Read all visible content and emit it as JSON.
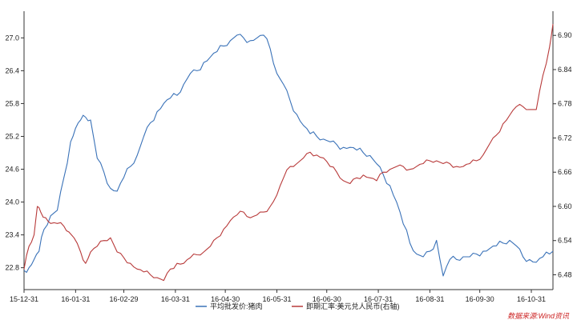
{
  "chart_data": {
    "type": "line",
    "x_ticks": [
      "15-12-31",
      "16-01-31",
      "16-02-29",
      "16-03-31",
      "16-04-30",
      "16-05-31",
      "16-06-30",
      "16-07-31",
      "16-08-31",
      "16-09-30",
      "16-10-31"
    ],
    "y_left": {
      "ticks": [
        "22.8",
        "23.4",
        "24.0",
        "24.6",
        "25.2",
        "25.8",
        "26.4",
        "27.0"
      ],
      "ylim": [
        22.4,
        27.4
      ]
    },
    "y_right": {
      "ticks": [
        "6.48",
        "6.54",
        "6.60",
        "6.66",
        "6.72",
        "6.78",
        "6.84",
        "6.90"
      ],
      "ylim": [
        6.454,
        6.934
      ]
    },
    "series": [
      {
        "name": "平均批发价:猪肉",
        "axis": "left",
        "color": "#3a72b8",
        "x": [
          0,
          3,
          6,
          9,
          12,
          16,
          20,
          24,
          28,
          31,
          34,
          37,
          40,
          44,
          48,
          52,
          56,
          60,
          64,
          68,
          72,
          76,
          80,
          84,
          88,
          92,
          96,
          100,
          104,
          108,
          112,
          116,
          120,
          124,
          128,
          132,
          136,
          140,
          144,
          148,
          152,
          156,
          160,
          164,
          168,
          172,
          176,
          180,
          184,
          188,
          192,
          196,
          200,
          204,
          208,
          212,
          216,
          220,
          224,
          228,
          232,
          236,
          240,
          244,
          248,
          252,
          256,
          260,
          264,
          268,
          272,
          276,
          280,
          284,
          288,
          292,
          296,
          300,
          304,
          308,
          312,
          316
        ],
        "y": [
          22.75,
          22.8,
          22.95,
          23.1,
          23.5,
          23.75,
          23.85,
          24.45,
          25.1,
          25.35,
          25.5,
          25.55,
          25.5,
          24.8,
          24.55,
          24.25,
          24.2,
          24.45,
          24.65,
          24.85,
          25.2,
          25.45,
          25.65,
          25.8,
          25.9,
          25.95,
          26.15,
          26.35,
          26.4,
          26.55,
          26.65,
          26.75,
          26.85,
          26.95,
          27.05,
          27.0,
          26.95,
          27.0,
          27.05,
          26.8,
          26.35,
          26.15,
          25.85,
          25.6,
          25.4,
          25.25,
          25.2,
          25.15,
          25.1,
          25.05,
          25.0,
          25.0,
          24.95,
          24.9,
          24.85,
          24.7,
          24.5,
          24.3,
          24.0,
          23.6,
          23.25,
          23.05,
          23.0,
          23.1,
          23.3,
          22.65,
          22.95,
          22.95,
          23.0,
          23.0,
          23.05,
          23.1,
          23.15,
          23.2,
          23.25,
          23.3,
          23.2,
          23.0,
          22.95,
          22.9,
          23.0,
          23.05
        ],
        "x_end": 318,
        "y_end": 23.1
      },
      {
        "name": "即期汇率:美元兑人民币(右轴)",
        "axis": "right",
        "color": "#b83a3a",
        "x": [
          0,
          3,
          6,
          8,
          10,
          13,
          16,
          20,
          24,
          27,
          30,
          34,
          37,
          40,
          44,
          48,
          52,
          56,
          60,
          64,
          68,
          72,
          76,
          80,
          84,
          88,
          92,
          96,
          100,
          104,
          108,
          112,
          116,
          120,
          124,
          128,
          132,
          136,
          140,
          144,
          148,
          152,
          156,
          160,
          164,
          168,
          172,
          176,
          180,
          184,
          188,
          192,
          196,
          200,
          204,
          208,
          212,
          216,
          220,
          224,
          228,
          232,
          236,
          240,
          244,
          248,
          252,
          256,
          260,
          264,
          268,
          272,
          276,
          280,
          284,
          288,
          292,
          296,
          300,
          304,
          308,
          312,
          316,
          318
        ],
        "y": [
          6.49,
          6.53,
          6.55,
          6.6,
          6.59,
          6.58,
          6.57,
          6.57,
          6.565,
          6.555,
          6.545,
          6.52,
          6.5,
          6.52,
          6.53,
          6.54,
          6.545,
          6.52,
          6.51,
          6.5,
          6.49,
          6.485,
          6.48,
          6.475,
          6.47,
          6.49,
          6.5,
          6.5,
          6.51,
          6.515,
          6.52,
          6.53,
          6.545,
          6.56,
          6.575,
          6.585,
          6.59,
          6.58,
          6.585,
          6.59,
          6.6,
          6.62,
          6.65,
          6.67,
          6.675,
          6.685,
          6.695,
          6.69,
          6.685,
          6.67,
          6.66,
          6.645,
          6.64,
          6.65,
          6.655,
          6.65,
          6.645,
          6.66,
          6.665,
          6.67,
          6.67,
          6.665,
          6.67,
          6.675,
          6.68,
          6.68,
          6.675,
          6.675,
          6.67,
          6.67,
          6.675,
          6.68,
          6.69,
          6.71,
          6.725,
          6.745,
          6.76,
          6.775,
          6.775,
          6.77,
          6.77,
          6.83,
          6.88,
          6.92
        ]
      }
    ],
    "legend": [
      "平均批发价:猪肉",
      "即期汇率:美元兑人民币(右轴)"
    ],
    "legend_placement": "bottom",
    "grid": false,
    "source": "数据来源:Wind资讯"
  }
}
